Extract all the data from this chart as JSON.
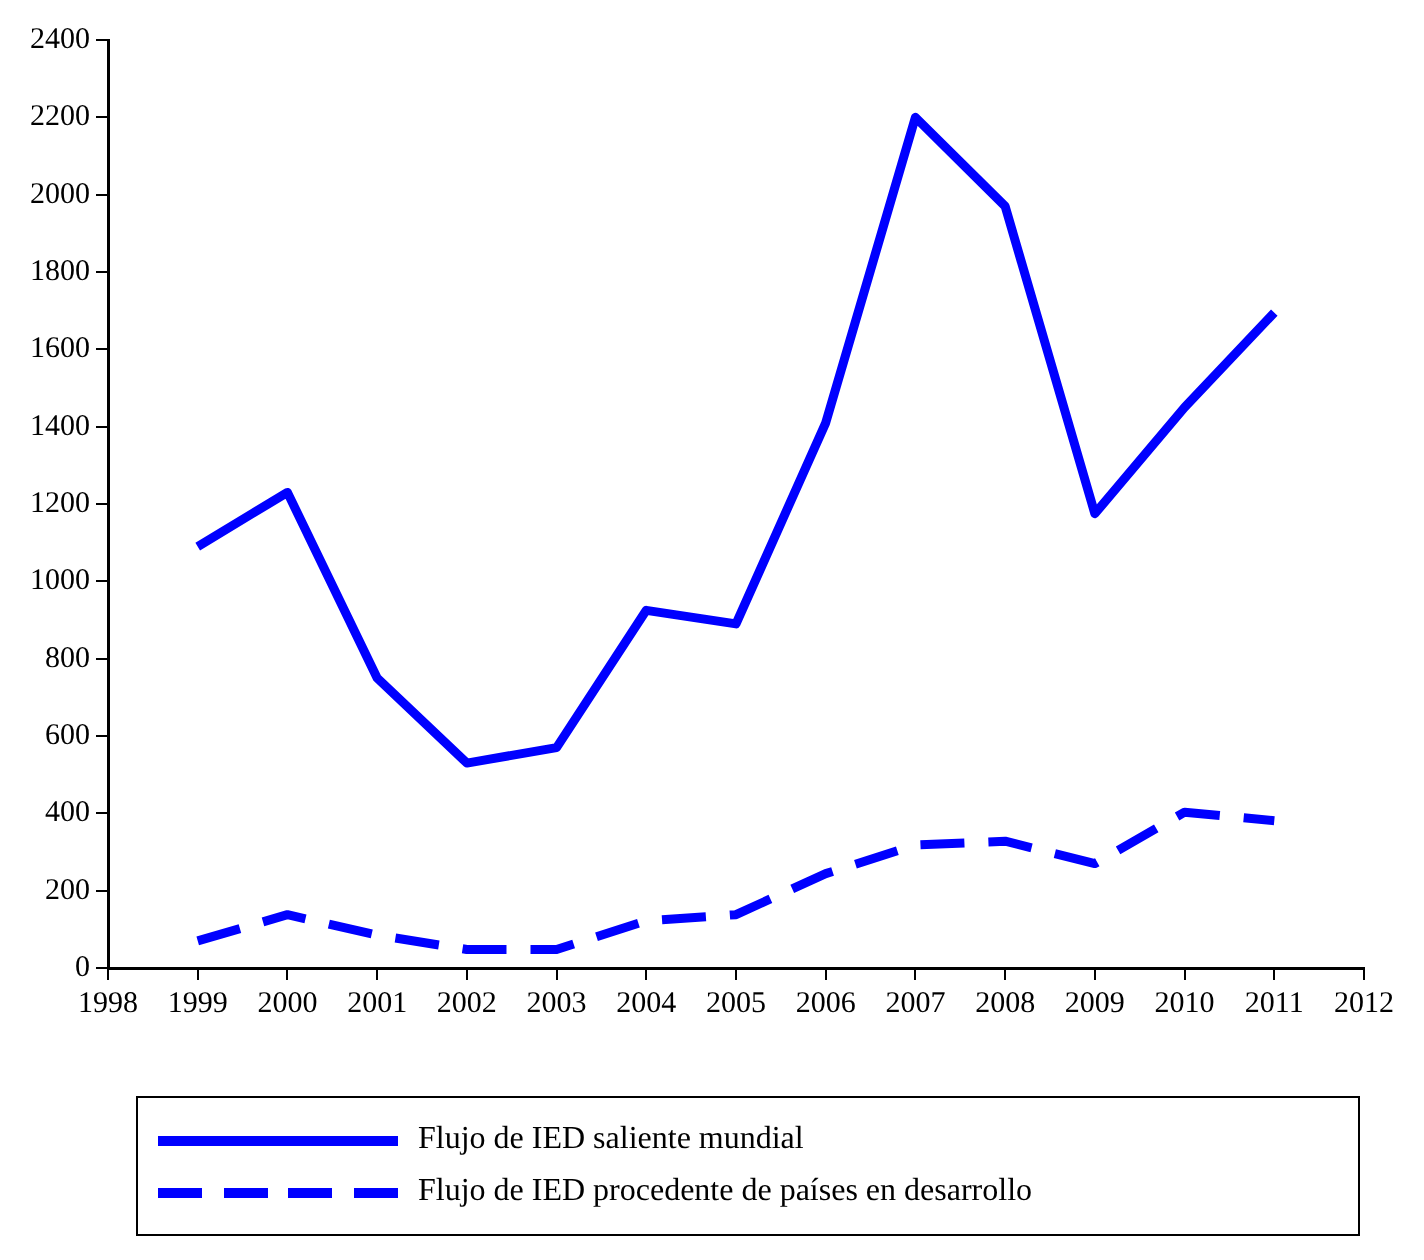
{
  "chart_data": {
    "type": "line",
    "x": [
      1999,
      2000,
      2001,
      2002,
      2003,
      2004,
      2005,
      2006,
      2007,
      2008,
      2009,
      2010,
      2011
    ],
    "series": [
      {
        "name": "Flujo de IED saliente mundial",
        "color": "#0000ff",
        "line_style": "solid",
        "values": [
          1090,
          1230,
          750,
          530,
          570,
          925,
          890,
          1410,
          2200,
          1970,
          1175,
          1450,
          1695
        ]
      },
      {
        "name": "Flujo de IED procedente de países en desarrollo",
        "color": "#0000ff",
        "line_style": "dashed",
        "values": [
          70,
          138,
          85,
          48,
          48,
          122,
          138,
          244,
          318,
          328,
          270,
          403,
          381
        ]
      }
    ],
    "xlim": [
      1998,
      2012
    ],
    "xticks": [
      1998,
      1999,
      2000,
      2001,
      2002,
      2003,
      2004,
      2005,
      2006,
      2007,
      2008,
      2009,
      2010,
      2011,
      2012
    ],
    "ylim": [
      0,
      2400
    ],
    "yticks": [
      0,
      200,
      400,
      600,
      800,
      1000,
      1200,
      1400,
      1600,
      1800,
      2000,
      2200,
      2400
    ],
    "grid": false,
    "legend": "bottom",
    "marker": "none"
  }
}
